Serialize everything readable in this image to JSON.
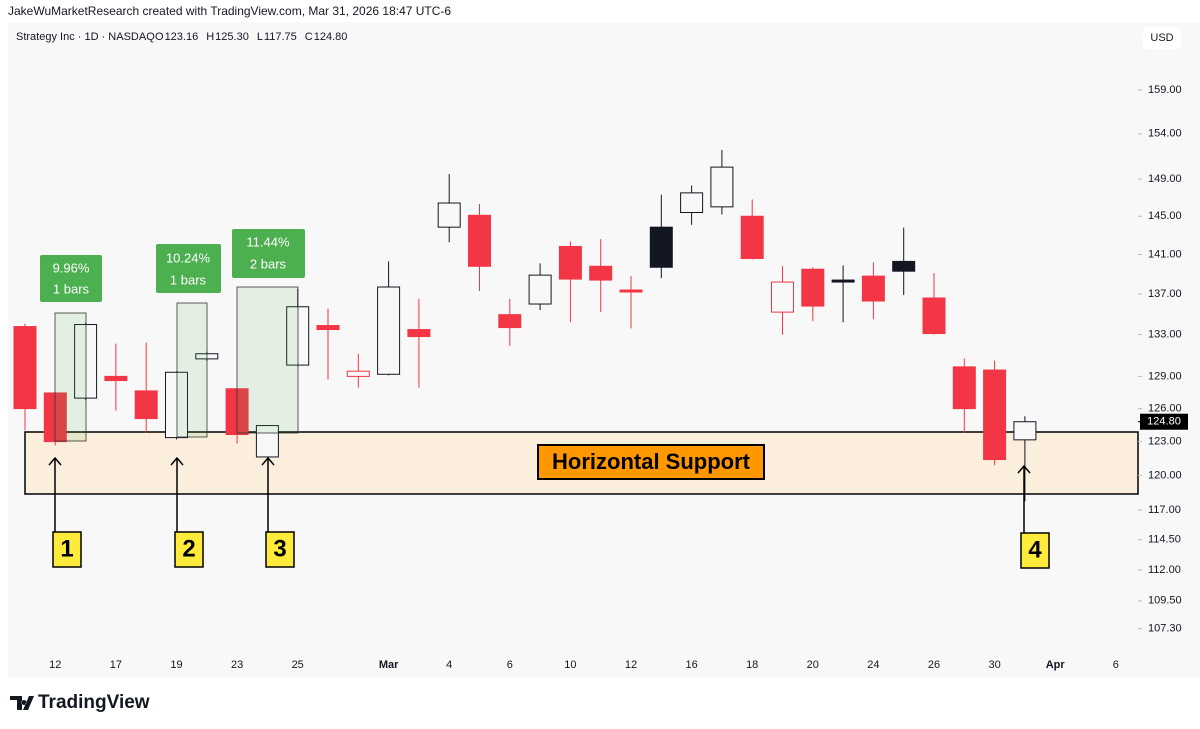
{
  "header": {
    "credit": "JakeWuMarketResearch created with TradingView.com, Mar 31, 2026 18:47 UTC-6",
    "symbol": "Strategy Inc · 1D · NASDAQ",
    "ohlc": [
      {
        "key": "O",
        "text": "123.16"
      },
      {
        "key": "H",
        "text": "125.30"
      },
      {
        "key": "L",
        "text": "117.75"
      },
      {
        "key": "C",
        "text": "124.80"
      }
    ],
    "currency": "USD"
  },
  "chart_data": {
    "type": "candlestick",
    "log_scale": true,
    "colors": {
      "up": "#131722",
      "down": "#f23645"
    },
    "categories": [
      null,
      "12",
      null,
      "17",
      null,
      "19",
      null,
      "23",
      null,
      "25",
      null,
      null,
      "Mar",
      null,
      "4",
      null,
      "6",
      null,
      "10",
      null,
      "12",
      null,
      "16",
      null,
      "18",
      null,
      "20",
      null,
      "24",
      null,
      "26",
      null,
      "30",
      null,
      "Apr",
      null,
      "6"
    ],
    "open": [
      133.78,
      127.45,
      126.97,
      129.0,
      127.64,
      123.36,
      130.66,
      127.84,
      121.63,
      130.07,
      133.88,
      129.0,
      129.2,
      133.49,
      143.85,
      145.1,
      134.95,
      136.0,
      141.84,
      139.8,
      137.4,
      143.85,
      145.4,
      146.0,
      145.0,
      135.2,
      139.5,
      138.4,
      138.8,
      140.3,
      136.6,
      129.9,
      129.6,
      123.16,
      null,
      null,
      null
    ],
    "high": [
      134.07,
      127.55,
      134.17,
      132.12,
      132.22,
      129.5,
      131.35,
      127.9,
      124.5,
      137.5,
      135.54,
      131.15,
      140.3,
      136.51,
      149.54,
      146.3,
      136.5,
      140.1,
      142.37,
      142.6,
      138.8,
      147.3,
      148.3,
      152.2,
      146.8,
      139.8,
      139.7,
      139.9,
      140.2,
      143.8,
      139.1,
      130.7,
      130.5,
      125.3,
      null,
      null,
      null
    ],
    "low": [
      124.0,
      122.66,
      126.77,
      125.82,
      123.82,
      123.2,
      130.46,
      122.83,
      121.6,
      130.0,
      128.71,
      127.94,
      129.1,
      127.94,
      142.27,
      137.3,
      131.9,
      135.4,
      134.2,
      135.2,
      133.6,
      138.6,
      144.1,
      145.2,
      140.5,
      133.0,
      134.3,
      134.2,
      134.5,
      136.9,
      133.0,
      123.8,
      120.9,
      117.75,
      null,
      null,
      null
    ],
    "close": [
      126.0,
      123.0,
      133.98,
      128.61,
      125.09,
      129.39,
      131.15,
      123.64,
      124.45,
      135.73,
      133.49,
      129.49,
      137.7,
      132.81,
      146.41,
      139.8,
      133.68,
      138.9,
      138.5,
      138.4,
      137.2,
      139.7,
      147.5,
      150.3,
      140.6,
      138.2,
      135.8,
      138.2,
      136.3,
      139.3,
      133.1,
      126.0,
      121.4,
      124.8,
      null,
      null,
      null
    ],
    "ylim": [
      105.1,
      167.1
    ],
    "yticks": [
      {
        "value": 159,
        "label": "159.00"
      },
      {
        "value": 154,
        "label": "154.00"
      },
      {
        "value": 149,
        "label": "149.00"
      },
      {
        "value": 145,
        "label": "145.00"
      },
      {
        "value": 141,
        "label": "141.00"
      },
      {
        "value": 137,
        "label": "137.00"
      },
      {
        "value": 133,
        "label": "133.00"
      },
      {
        "value": 129,
        "label": "129.00"
      },
      {
        "value": 126,
        "label": "126.00"
      },
      {
        "value": 123,
        "label": "123.00"
      },
      {
        "value": 120,
        "label": "120.00"
      },
      {
        "value": 117,
        "label": "117.00"
      },
      {
        "value": 114.5,
        "label": "114.50"
      },
      {
        "value": 112,
        "label": "112.00"
      },
      {
        "value": 109.5,
        "label": "109.50"
      },
      {
        "value": 107.3,
        "label": "107.30"
      }
    ],
    "last_price": {
      "value": 124.8,
      "label": "124.80"
    }
  },
  "measures": [
    {
      "pct": "9.96%",
      "bars": "1 bars"
    },
    {
      "pct": "10.24%",
      "bars": "1 bars"
    },
    {
      "pct": "11.44%",
      "bars": "2 bars"
    }
  ],
  "support_label": "Horizontal Support",
  "callouts": [
    "1",
    "2",
    "3",
    "4"
  ],
  "footer": "TradingView"
}
